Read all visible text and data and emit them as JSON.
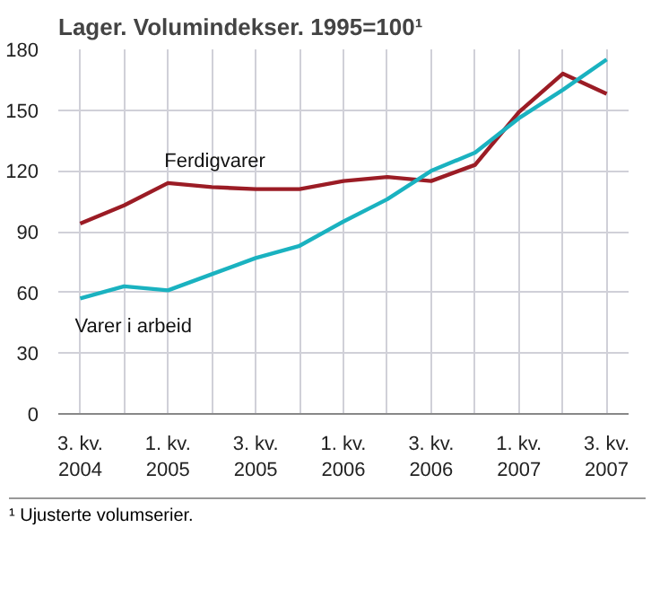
{
  "chart_data": {
    "type": "line",
    "title": "Lager. Volumindekser. 1995=100¹",
    "categories": [
      "3. kv.\n2004",
      null,
      "1. kv.\n2005",
      null,
      "3. kv.\n2005",
      null,
      "1. kv.\n2006",
      null,
      "3. kv.\n2006",
      null,
      "1. kv.\n2007",
      null,
      "3. kv.\n2007"
    ],
    "series": [
      {
        "name": "Ferdigvarer",
        "color": "#9b1c25",
        "values": [
          94,
          103,
          114,
          112,
          111,
          111,
          115,
          117,
          115,
          123,
          149,
          168,
          158
        ]
      },
      {
        "name": "Varer i arbeid",
        "color": "#1ab2c0",
        "values": [
          57,
          63,
          61,
          69,
          77,
          83,
          95,
          106,
          120,
          129,
          146,
          160,
          175
        ]
      }
    ],
    "ylim": [
      0,
      180
    ],
    "yticks": [
      0,
      30,
      60,
      90,
      120,
      150,
      180
    ],
    "grid": true,
    "legend": false,
    "marker": "none",
    "line_style": "solid",
    "annotations": [
      "¹ Ujusterte volumserier."
    ]
  }
}
